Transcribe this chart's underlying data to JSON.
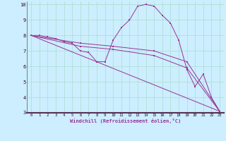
{
  "xlabel": "Windchill (Refroidissement éolien,°C)",
  "bg_color": "#cceeff",
  "grid_color": "#aaddcc",
  "line_color": "#993399",
  "xlim": [
    -0.5,
    23.5
  ],
  "ylim": [
    3,
    10.2
  ],
  "yticks": [
    3,
    4,
    5,
    6,
    7,
    8,
    9,
    10
  ],
  "xticks": [
    0,
    1,
    2,
    3,
    4,
    5,
    6,
    7,
    8,
    9,
    10,
    11,
    12,
    13,
    14,
    15,
    16,
    17,
    18,
    19,
    20,
    21,
    22,
    23
  ],
  "lines": [
    {
      "x": [
        0,
        1,
        2,
        3,
        4,
        5,
        6,
        7,
        8,
        9,
        10,
        11,
        12,
        13,
        14,
        15,
        16,
        17,
        18,
        19,
        20,
        21,
        22,
        23
      ],
      "y": [
        8.0,
        8.0,
        7.9,
        7.8,
        7.6,
        7.5,
        7.0,
        6.9,
        6.3,
        6.3,
        7.7,
        8.5,
        9.0,
        9.9,
        10.0,
        9.9,
        9.3,
        8.8,
        7.7,
        5.8,
        4.7,
        5.5,
        4.0,
        3.1
      ]
    },
    {
      "x": [
        0,
        23
      ],
      "y": [
        8.0,
        3.1
      ]
    },
    {
      "x": [
        0,
        6,
        10,
        15,
        19,
        23
      ],
      "y": [
        8.0,
        7.5,
        7.3,
        7.0,
        6.3,
        3.1
      ]
    },
    {
      "x": [
        0,
        6,
        10,
        15,
        19,
        23
      ],
      "y": [
        8.0,
        7.3,
        7.1,
        6.7,
        5.9,
        3.1
      ]
    }
  ]
}
